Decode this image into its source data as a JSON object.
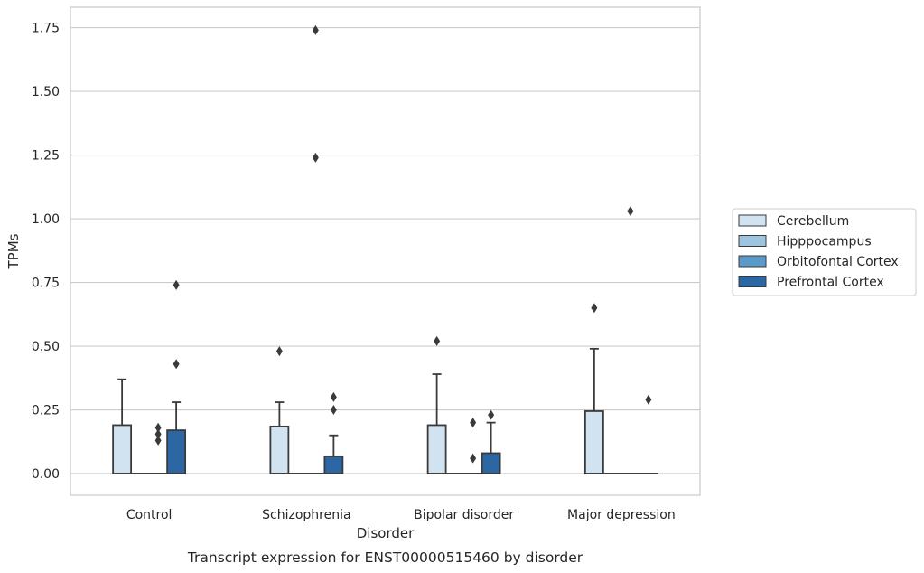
{
  "chart_data": {
    "type": "box",
    "title": "",
    "caption": "Transcript expression for ENST00000515460 by disorder",
    "xlabel": "Disorder",
    "ylabel": "TPMs",
    "ylim": [
      -0.085,
      1.83
    ],
    "yticks": [
      "0.00",
      "0.25",
      "0.50",
      "0.75",
      "1.00",
      "1.25",
      "1.50",
      "1.75"
    ],
    "ytick_values": [
      0,
      0.25,
      0.5,
      0.75,
      1.0,
      1.25,
      1.5,
      1.75
    ],
    "grid": "horizontal",
    "legend_position": "right",
    "categories": [
      "Control",
      "Schizophrenia",
      "Bipolar disorder",
      "Major depression"
    ],
    "series": [
      {
        "name": "Cerebellum",
        "color": "#d1e2f1",
        "boxes": [
          {
            "min": 0,
            "q1": 0,
            "median": 0,
            "q3": 0.19,
            "max": 0.37,
            "outliers": []
          },
          {
            "min": 0,
            "q1": 0,
            "median": 0,
            "q3": 0.185,
            "max": 0.28,
            "outliers": [
              0.48
            ]
          },
          {
            "min": 0,
            "q1": 0,
            "median": 0,
            "q3": 0.19,
            "max": 0.39,
            "outliers": [
              0.52
            ]
          },
          {
            "min": 0,
            "q1": 0,
            "median": 0,
            "q3": 0.245,
            "max": 0.49,
            "outliers": [
              0.65
            ]
          }
        ]
      },
      {
        "name": "Hipppocampus",
        "color": "#9dc5e0",
        "boxes": [
          {
            "min": 0,
            "q1": 0,
            "median": 0,
            "q3": 0,
            "max": 0,
            "outliers": []
          },
          {
            "min": 0,
            "q1": 0,
            "median": 0,
            "q3": 0,
            "max": 0,
            "outliers": []
          },
          {
            "min": 0,
            "q1": 0,
            "median": 0,
            "q3": 0,
            "max": 0,
            "outliers": []
          },
          {
            "min": 0,
            "q1": 0,
            "median": 0,
            "q3": 0,
            "max": 0,
            "outliers": []
          }
        ]
      },
      {
        "name": "Orbitofontal Cortex",
        "color": "#5b9ac8",
        "boxes": [
          {
            "min": 0,
            "q1": 0,
            "median": 0,
            "q3": 0,
            "max": 0,
            "outliers": [
              0.13,
              0.155,
              0.18
            ]
          },
          {
            "min": 0,
            "q1": 0,
            "median": 0,
            "q3": 0,
            "max": 0,
            "outliers": [
              1.24,
              1.74
            ]
          },
          {
            "min": 0,
            "q1": 0,
            "median": 0,
            "q3": 0,
            "max": 0,
            "outliers": [
              0.06,
              0.2
            ]
          },
          {
            "min": 0,
            "q1": 0,
            "median": 0,
            "q3": 0,
            "max": 0,
            "outliers": [
              1.03
            ]
          }
        ]
      },
      {
        "name": "Prefrontal Cortex",
        "color": "#2c67a3",
        "boxes": [
          {
            "min": 0,
            "q1": 0,
            "median": 0,
            "q3": 0.17,
            "max": 0.28,
            "outliers": [
              0.43,
              0.74
            ]
          },
          {
            "min": 0,
            "q1": 0,
            "median": 0,
            "q3": 0.068,
            "max": 0.15,
            "outliers": [
              0.25,
              0.3
            ]
          },
          {
            "min": 0,
            "q1": 0,
            "median": 0,
            "q3": 0.08,
            "max": 0.2,
            "outliers": [
              0.23
            ]
          },
          {
            "min": 0,
            "q1": 0,
            "median": 0,
            "q3": 0,
            "max": 0,
            "outliers": [
              0.29
            ]
          }
        ]
      }
    ],
    "colors": {
      "edge": "#3a3a3a",
      "grid": "#cccccc",
      "frame": "#cccccc",
      "text": "#262626"
    }
  }
}
